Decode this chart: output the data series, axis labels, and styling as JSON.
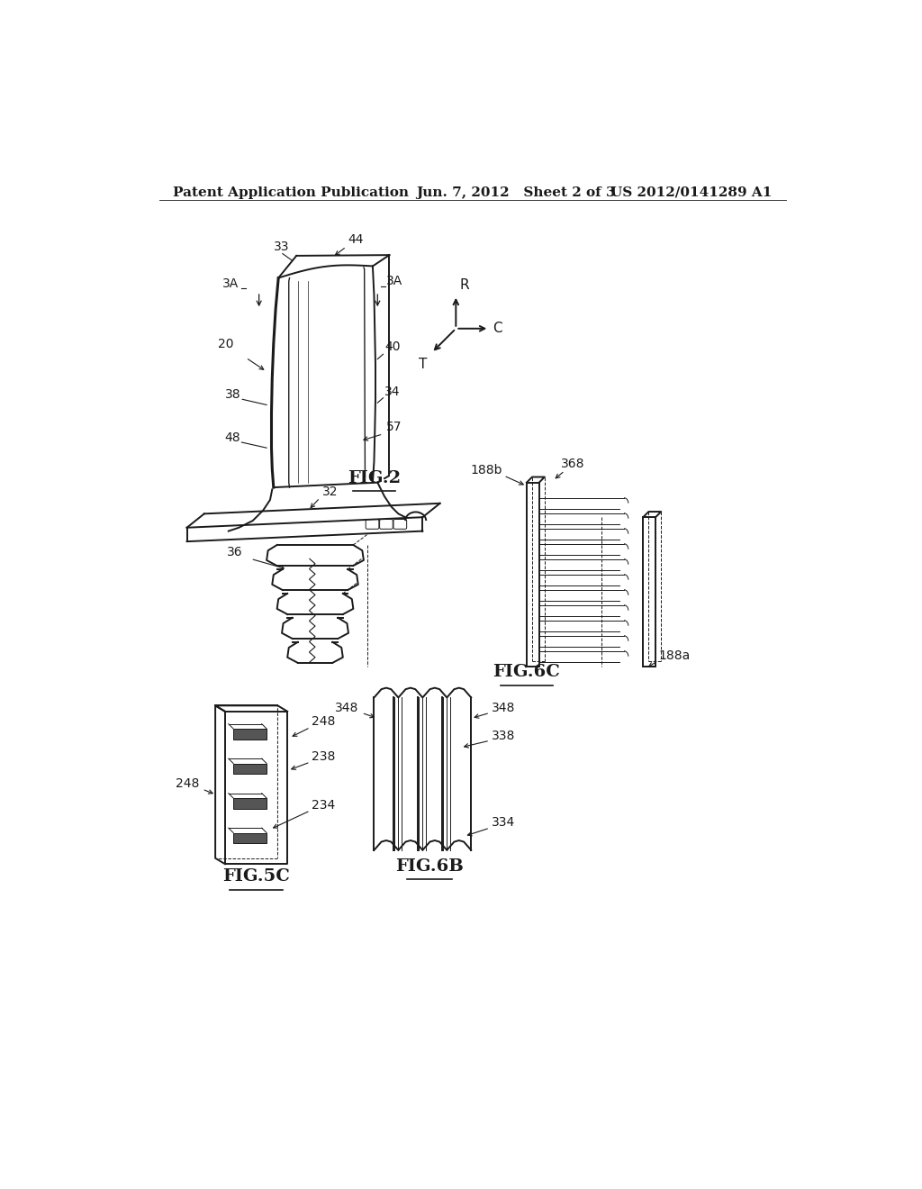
{
  "background_color": "#ffffff",
  "header_left": "Patent Application Publication",
  "header_center": "Jun. 7, 2012   Sheet 2 of 3",
  "header_right": "US 2012/0141289 A1",
  "fig2_label": "FIG.2",
  "fig5c_label": "FIG.5C",
  "fig6b_label": "FIG.6B",
  "fig6c_label": "FIG.6C",
  "label_fontsize": 13,
  "annotation_fontsize": 10,
  "line_color": "#1a1a1a",
  "thin_line": 0.7,
  "medium_line": 1.4,
  "thick_line": 2.2
}
